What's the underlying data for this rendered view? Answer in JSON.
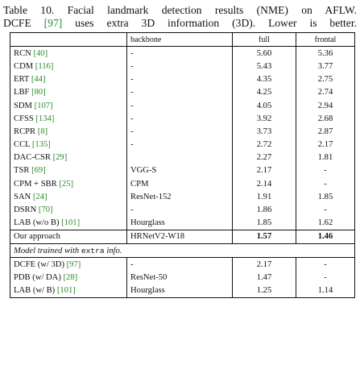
{
  "caption": {
    "line1": "Table 10. Facial landmark detection results (NME) on AFLW.",
    "line2_pre": "DCFE ",
    "line2_cite": "[97]",
    "line2_post": " uses extra 3D information (3D). Lower is better."
  },
  "table": {
    "headers": {
      "method": "",
      "backbone": "backbone",
      "full": "full",
      "frontal": "frontal"
    },
    "rows": [
      {
        "method": "RCN",
        "cite": "[40]",
        "backbone": "-",
        "full": "5.60",
        "frontal": "5.36"
      },
      {
        "method": "CDM",
        "cite": "[116]",
        "backbone": "-",
        "full": "5.43",
        "frontal": "3.77"
      },
      {
        "method": "ERT",
        "cite": "[44]",
        "backbone": "-",
        "full": "4.35",
        "frontal": "2.75"
      },
      {
        "method": "LBF",
        "cite": "[80]",
        "backbone": "-",
        "full": "4.25",
        "frontal": "2.74"
      },
      {
        "method": "SDM",
        "cite": "[107]",
        "backbone": "-",
        "full": "4.05",
        "frontal": "2.94"
      },
      {
        "method": "CFSS",
        "cite": "[134]",
        "backbone": "-",
        "full": "3.92",
        "frontal": "2.68"
      },
      {
        "method": "RCPR",
        "cite": "[8]",
        "backbone": "-",
        "full": "3.73",
        "frontal": "2.87"
      },
      {
        "method": "CCL",
        "cite": "[135]",
        "backbone": "-",
        "full": "2.72",
        "frontal": "2.17"
      },
      {
        "method": "DAC-CSR",
        "cite": "[29]",
        "backbone": "",
        "full": "2.27",
        "frontal": "1.81"
      },
      {
        "method": "TSR",
        "cite": "[69]",
        "backbone": "VGG-S",
        "full": "2.17",
        "frontal": "-"
      },
      {
        "method": "CPM + SBR",
        "cite": "[25]",
        "backbone": "CPM",
        "full": "2.14",
        "frontal": "-"
      },
      {
        "method": "SAN",
        "cite": "[24]",
        "backbone": "ResNet-152",
        "full": "1.91",
        "frontal": "1.85"
      },
      {
        "method": "DSRN",
        "cite": "[70]",
        "backbone": "-",
        "full": "1.86",
        "frontal": "-"
      },
      {
        "method": "LAB (w/o B)",
        "cite": "[101]",
        "backbone": "Hourglass",
        "full": "1.85",
        "frontal": "1.62"
      }
    ],
    "ours": {
      "method": "Our approach",
      "backbone": "HRNetV2-W18",
      "full": "1.57",
      "frontal": "1.46"
    },
    "section": {
      "pre": "Model trained with ",
      "mono": "extra",
      "post": " info."
    },
    "extra_rows": [
      {
        "method": "DCFE (w/ 3D)",
        "cite": "[97]",
        "backbone": "-",
        "full": "2.17",
        "frontal": "-"
      },
      {
        "method": "PDB (w/ DA)",
        "cite": "[28]",
        "backbone": "ResNet-50",
        "full": "1.47",
        "frontal": "-"
      },
      {
        "method": "LAB (w/ B)",
        "cite": "[101]",
        "backbone": "Hourglass",
        "full": "1.25",
        "frontal": "1.14"
      }
    ]
  }
}
